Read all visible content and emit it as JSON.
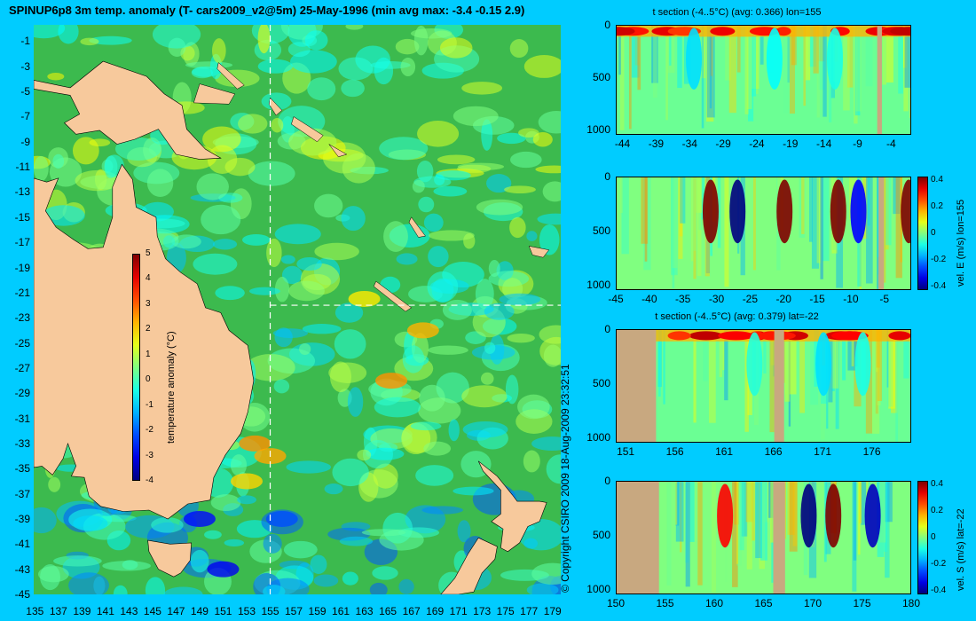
{
  "title": "SPINUP6p8 3m temp. anomaly (T- cars2009_v2@5m) 25-May-1996 (min avg max: -3.4 -0.15 2.9)",
  "copyright": "© Copyright CSIRO 2009   18-Aug-2009 23:32:51",
  "colors": {
    "background": "#00ccff",
    "land": "#f7c99c",
    "panel_land": "#c8a880",
    "ocean_base": "#3cba4e"
  },
  "map": {
    "lat_labels": [
      "-1",
      "-3",
      "-5",
      "-7",
      "-9",
      "-11",
      "-13",
      "-15",
      "-17",
      "-19",
      "-21",
      "-23",
      "-25",
      "-27",
      "-29",
      "-31",
      "-33",
      "-35",
      "-37",
      "-39",
      "-41",
      "-43",
      "-45"
    ],
    "lon_labels": [
      "135",
      "137",
      "139",
      "141",
      "143",
      "145",
      "147",
      "149",
      "151",
      "153",
      "155",
      "157",
      "159",
      "161",
      "163",
      "165",
      "167",
      "169",
      "171",
      "173",
      "175",
      "177",
      "179"
    ],
    "crosshair": {
      "lon": 155,
      "lat": -22
    },
    "colorbar": {
      "label": "temperature anomaly (°C)",
      "ticks": [
        "5",
        "4",
        "3",
        "2",
        "1",
        "0",
        "-1",
        "-2",
        "-3",
        "-4"
      ],
      "range": [
        -4,
        5
      ]
    }
  },
  "panels": [
    {
      "title": "t section (-4..5°C) (avg: 0.366) lon=155",
      "y_ticks": [
        "0",
        "500",
        "1000"
      ],
      "x_ticks": [
        "-44",
        "-39",
        "-34",
        "-29",
        "-24",
        "-19",
        "-14",
        "-9",
        "-4"
      ],
      "x_range": [
        -45,
        -1
      ],
      "land_segments": [
        [
          -6.2,
          -5.5
        ]
      ],
      "features": [
        [
          -33.5,
          -0.9
        ],
        [
          -21.5,
          -0.6
        ],
        [
          -12.5,
          -0.4
        ]
      ]
    },
    {
      "title": "",
      "y_ticks": [
        "0",
        "500",
        "1000"
      ],
      "x_ticks": [
        "-45",
        "-40",
        "-35",
        "-30",
        "-25",
        "-20",
        "-15",
        "-10",
        "-5"
      ],
      "x_range": [
        -45,
        -1
      ],
      "land_segments": [
        [
          -6,
          -5.2
        ]
      ],
      "colorbar_label": "vel. E (m/s) lon=155",
      "colorbar_ticks": [
        "0.4",
        "0.2",
        "0",
        "-0.2",
        "-0.4"
      ],
      "features": [
        [
          -31,
          0.5
        ],
        [
          -27,
          -0.4
        ],
        [
          -20,
          0.4
        ],
        [
          -12,
          0.5
        ],
        [
          -9,
          -0.3
        ],
        [
          -1.5,
          0.45
        ]
      ]
    },
    {
      "title": "t section (-4..5°C) (avg: 0.379) lat=-22",
      "y_ticks": [
        "0",
        "500",
        "1000"
      ],
      "x_ticks": [
        "151",
        "156",
        "161",
        "166",
        "171",
        "176"
      ],
      "x_range": [
        150,
        180
      ],
      "land_segments": [
        [
          150,
          154
        ],
        [
          166,
          167
        ]
      ],
      "features": [
        [
          171,
          -0.9
        ],
        [
          175,
          -0.4
        ],
        [
          164,
          -0.3
        ]
      ]
    },
    {
      "title": "",
      "y_ticks": [
        "0",
        "500",
        "1000"
      ],
      "x_ticks": [
        "150",
        "155",
        "160",
        "165",
        "170",
        "175",
        "180"
      ],
      "x_range": [
        150,
        180
      ],
      "land_segments": [
        [
          150,
          154.3
        ],
        [
          165.9,
          167.1
        ]
      ],
      "colorbar_label": "vel. S (m/s) lat=-22",
      "colorbar_ticks": [
        "0.4",
        "0.2",
        "0",
        "-0.2",
        "-0.4"
      ],
      "features": [
        [
          169.5,
          -0.4
        ],
        [
          172,
          0.45
        ],
        [
          176,
          -0.35
        ],
        [
          161,
          0.3
        ]
      ]
    }
  ]
}
